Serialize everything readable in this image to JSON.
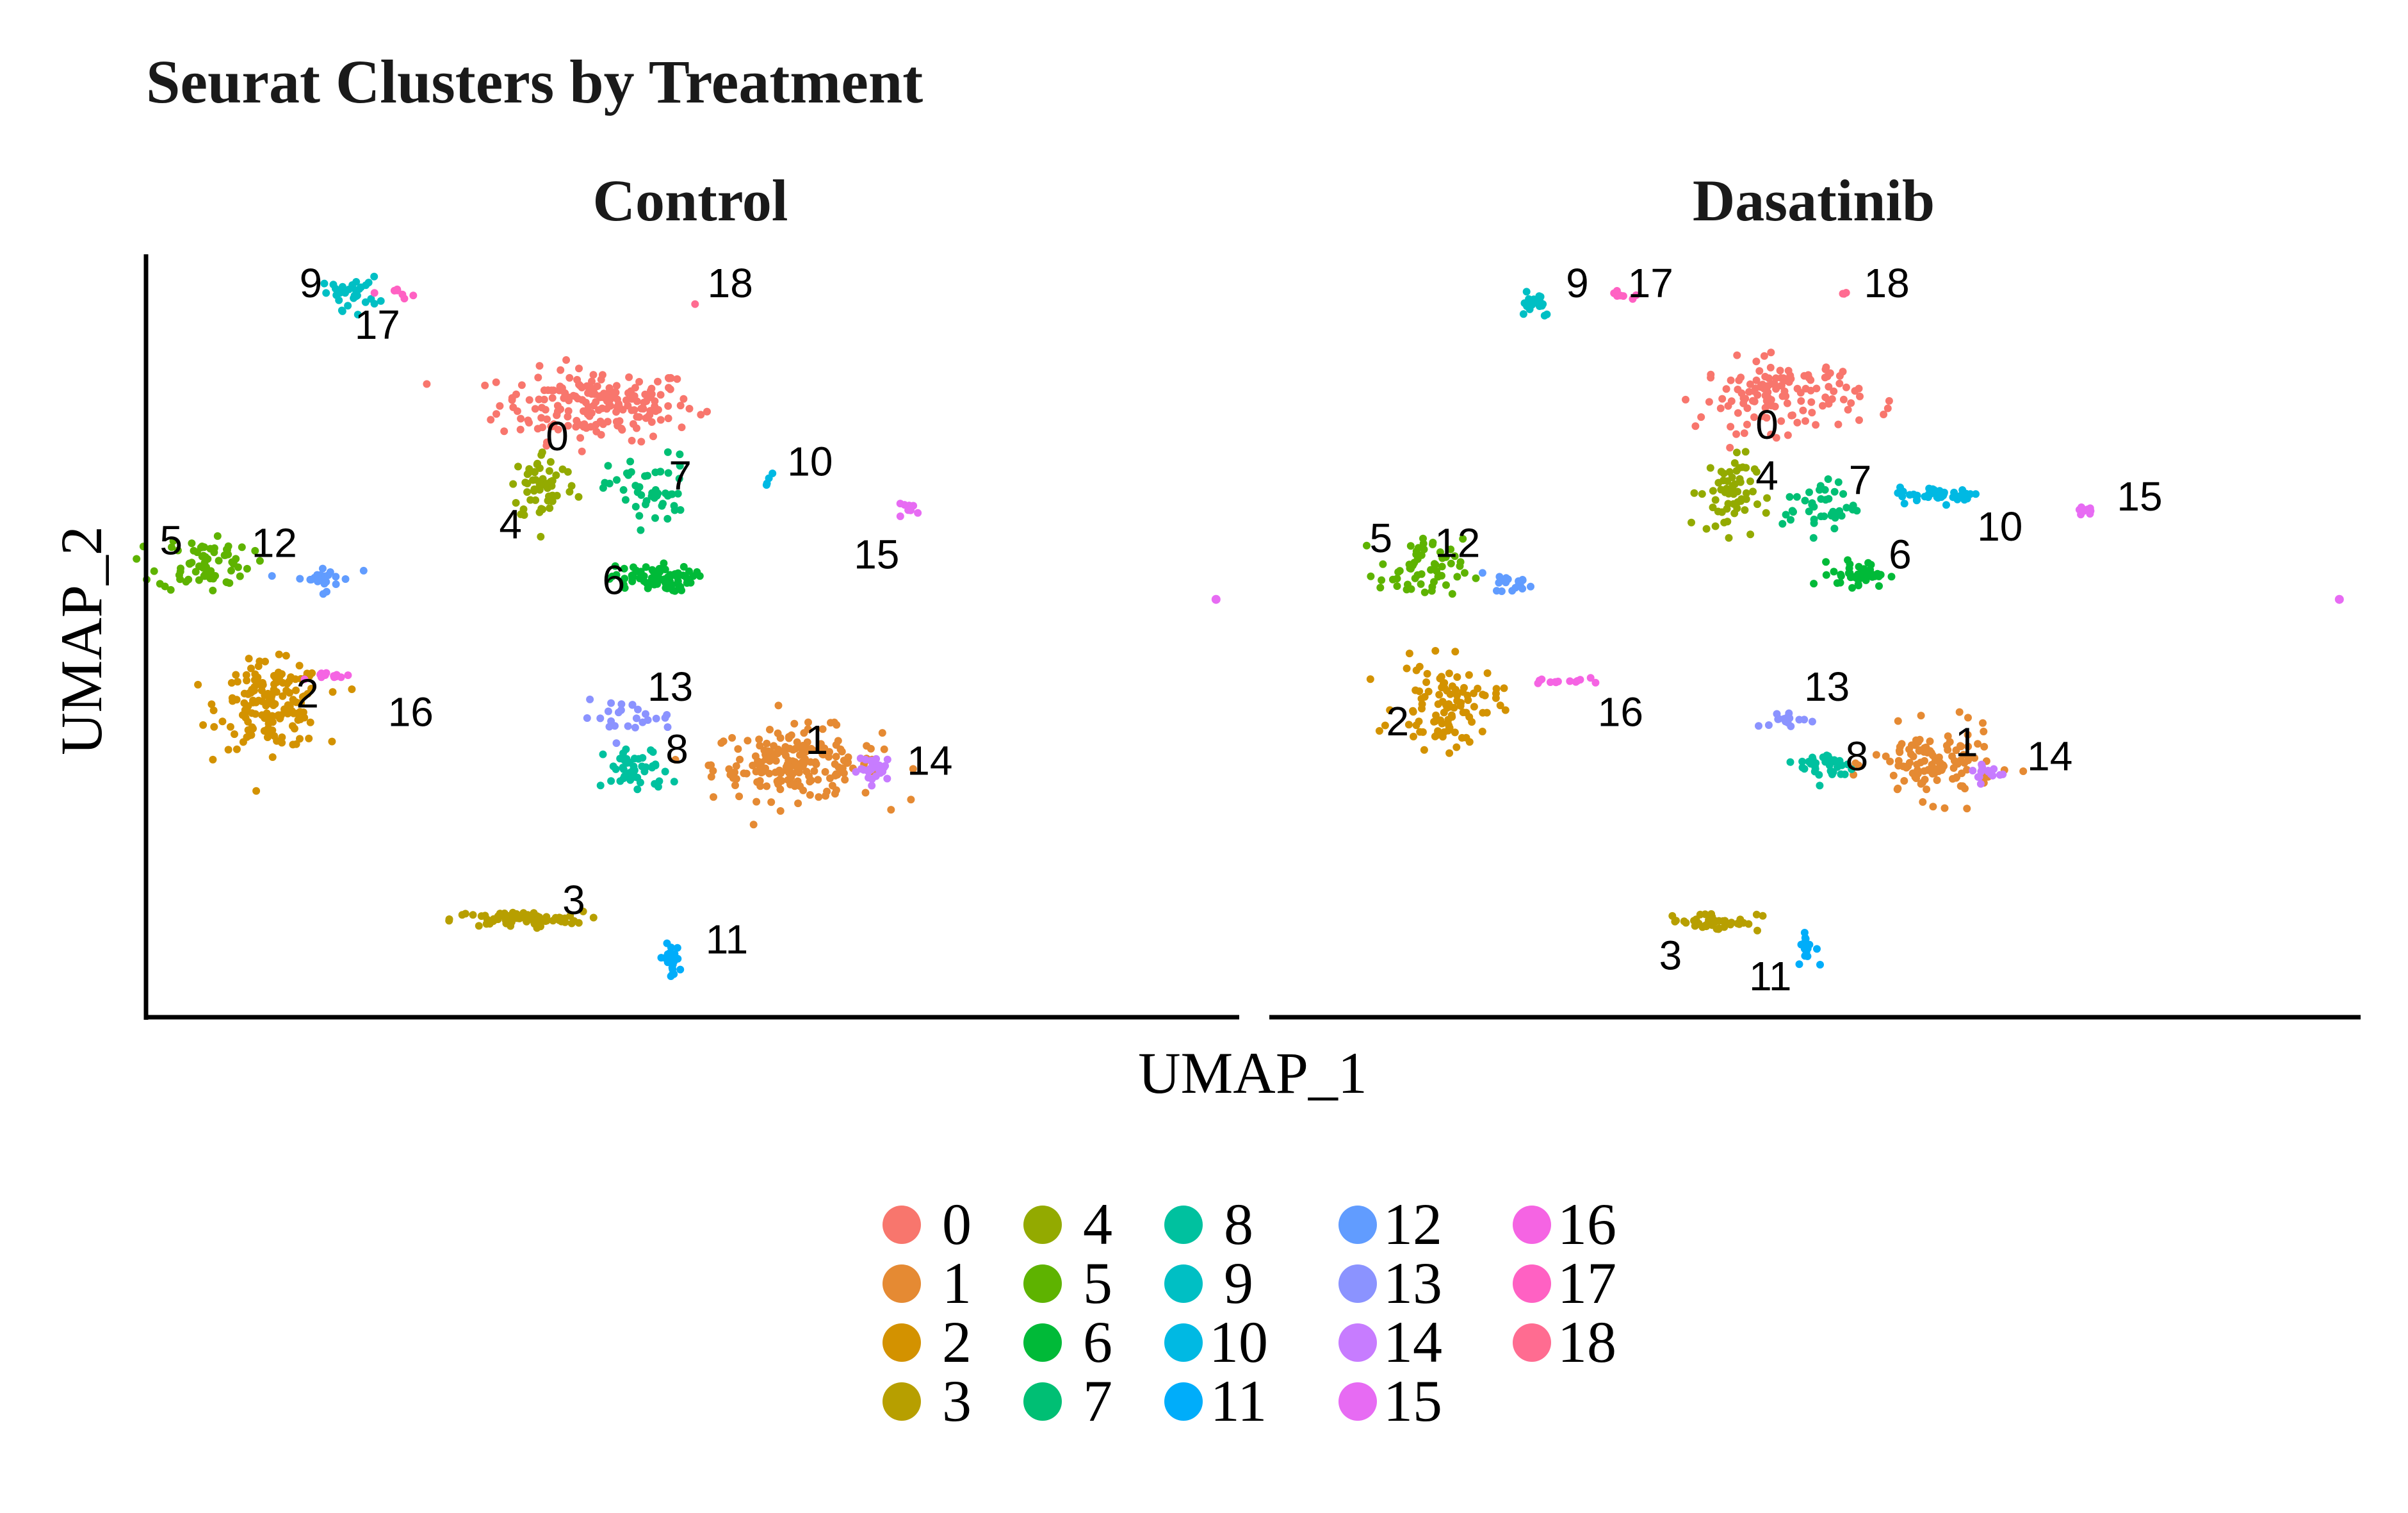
{
  "chart_data": {
    "type": "scatter",
    "title": "Seurat Clusters by Treatment",
    "xlabel": "UMAP_1",
    "ylabel": "UMAP_2",
    "axis_ticks": false,
    "grid": false,
    "legend_position": "bottom",
    "facets": [
      "Control",
      "Dasatinib"
    ],
    "clusters": [
      {
        "name": "0",
        "color": "#F8766D"
      },
      {
        "name": "1",
        "color": "#E7851E"
      },
      {
        "name": "2",
        "color": "#D09400"
      },
      {
        "name": "3",
        "color": "#B2A100"
      },
      {
        "name": "4",
        "color": "#89AC00"
      },
      {
        "name": "5",
        "color": "#45B500"
      },
      {
        "name": "6",
        "color": "#00BC51"
      },
      {
        "name": "7",
        "color": "#00C087"
      },
      {
        "name": "8",
        "color": "#00C0B2"
      },
      {
        "name": "9",
        "color": "#00BCD6"
      },
      {
        "name": "10",
        "color": "#00B3F2"
      },
      {
        "name": "11",
        "color": "#29A3FF"
      },
      {
        "name": "12",
        "color": "#9C8DFF"
      },
      {
        "name": "13",
        "color": "#D277FF"
      },
      {
        "name": "14",
        "color": "#F166E8"
      },
      {
        "name": "15",
        "color": "#FF61C7"
      },
      {
        "name": "16",
        "color": "#FF6C91"
      },
      {
        "name": "17",
        "color": "#00A9FF"
      },
      {
        "name": "18",
        "color": "#7CAE00"
      }
    ],
    "panel_colors": {
      "0": "#F8766D",
      "1": "#E58A33",
      "2": "#D39200",
      "3": "#B79F00",
      "4": "#93AA00",
      "5": "#5EB300",
      "6": "#00BA38",
      "7": "#00BF74",
      "8": "#00C19F",
      "9": "#00BFC4",
      "10": "#00B9E3",
      "11": "#00ADFA",
      "12": "#619CFF",
      "13": "#8B93FF",
      "14": "#C77CFF",
      "15": "#E76BF3",
      "16": "#F564E3",
      "17": "#FF61C3",
      "18": "#FF6C91"
    },
    "panels": [
      {
        "facet": "Control",
        "clusters": [
          {
            "name": "0",
            "cx": 0.0,
            "cy": 4.2,
            "sx": 1.05,
            "sy": 0.55,
            "n": 190,
            "label_at": [
              -0.6,
              3.45
            ]
          },
          {
            "name": "1",
            "cx": 3.0,
            "cy": -3.55,
            "sx": 0.9,
            "sy": 0.55,
            "n": 190,
            "label_at": [
              3.3,
              -3.1
            ]
          },
          {
            "name": "2",
            "cx": -4.9,
            "cy": -2.3,
            "sx": 0.55,
            "sy": 0.65,
            "n": 160,
            "label_at": [
              -4.35,
              -2.1
            ]
          },
          {
            "name": "3",
            "cx": -1.2,
            "cy": -6.9,
            "sx": 0.7,
            "sy": 0.12,
            "n": 80,
            "label_at": [
              -0.35,
              -6.55
            ]
          },
          {
            "name": "4",
            "cx": -0.8,
            "cy": 2.45,
            "sx": 0.35,
            "sy": 0.55,
            "n": 60,
            "label_at": [
              -1.3,
              1.55
            ]
          },
          {
            "name": "5",
            "cx": -5.9,
            "cy": 0.8,
            "sx": 0.5,
            "sy": 0.45,
            "n": 70,
            "label_at": [
              -6.4,
              1.2
            ]
          },
          {
            "name": "6",
            "cx": 0.8,
            "cy": 0.45,
            "sx": 0.45,
            "sy": 0.2,
            "n": 70,
            "label_at": [
              0.25,
              0.35
            ]
          },
          {
            "name": "7",
            "cx": 0.8,
            "cy": 2.35,
            "sx": 0.45,
            "sy": 0.55,
            "n": 50,
            "label_at": [
              1.25,
              2.6
            ]
          },
          {
            "name": "8",
            "cx": 0.6,
            "cy": -3.7,
            "sx": 0.35,
            "sy": 0.35,
            "n": 50,
            "label_at": [
              1.2,
              -3.3
            ]
          },
          {
            "name": "9",
            "cx": -3.7,
            "cy": 6.6,
            "sx": 0.3,
            "sy": 0.25,
            "n": 30,
            "label_at": [
              -4.3,
              6.75
            ]
          },
          {
            "name": "10",
            "cx": 2.6,
            "cy": 2.6,
            "sx": 0.05,
            "sy": 0.1,
            "n": 4,
            "label_at": [
              3.2,
              2.9
            ]
          },
          {
            "name": "11",
            "cx": 1.1,
            "cy": -7.8,
            "sx": 0.1,
            "sy": 0.25,
            "n": 20,
            "label_at": [
              1.95,
              -7.4
            ]
          },
          {
            "name": "12",
            "cx": -4.15,
            "cy": 0.45,
            "sx": 0.35,
            "sy": 0.2,
            "n": 25,
            "label_at": [
              -4.85,
              1.15
            ]
          },
          {
            "name": "13",
            "cx": 0.45,
            "cy": -2.55,
            "sx": 0.5,
            "sy": 0.25,
            "n": 25,
            "label_at": [
              1.1,
              -1.95
            ]
          },
          {
            "name": "14",
            "cx": 4.2,
            "cy": -3.65,
            "sx": 0.2,
            "sy": 0.2,
            "n": 30,
            "label_at": [
              5.0,
              -3.55
            ]
          },
          {
            "name": "15",
            "cx": 4.7,
            "cy": 1.95,
            "sx": 0.15,
            "sy": 0.08,
            "n": 8,
            "label_at": [
              4.2,
              0.9
            ]
          },
          {
            "name": "16",
            "cx": -3.9,
            "cy": -1.65,
            "sx": 0.25,
            "sy": 0.06,
            "n": 12,
            "label_at": [
              -2.8,
              -2.5
            ]
          },
          {
            "name": "17",
            "cx": -2.95,
            "cy": 6.6,
            "sx": 0.15,
            "sy": 0.08,
            "n": 7,
            "label_at": [
              -3.3,
              5.85
            ]
          },
          {
            "name": "18",
            "cx": 1.5,
            "cy": 6.35,
            "sx": 0.02,
            "sy": 0.02,
            "n": 1,
            "label_at": [
              2.0,
              6.75
            ]
          }
        ],
        "outliers": [
          {
            "name": "15",
            "x": 9.3,
            "y": 0.0
          }
        ]
      },
      {
        "facet": "Dasatinib",
        "clusters": [
          {
            "name": "0",
            "cx": 0.9,
            "cy": 4.4,
            "sx": 0.85,
            "sy": 0.55,
            "n": 130,
            "label_at": [
              0.7,
              3.7
            ]
          },
          {
            "name": "1",
            "cx": 3.2,
            "cy": -3.55,
            "sx": 0.65,
            "sy": 0.55,
            "n": 120,
            "label_at": [
              3.7,
              -3.15
            ]
          },
          {
            "name": "2",
            "cx": -4.1,
            "cy": -2.3,
            "sx": 0.55,
            "sy": 0.65,
            "n": 100,
            "label_at": [
              -4.85,
              -2.7
            ]
          },
          {
            "name": "3",
            "cx": -0.1,
            "cy": -6.95,
            "sx": 0.5,
            "sy": 0.15,
            "n": 40,
            "label_at": [
              -0.75,
              -7.75
            ]
          },
          {
            "name": "4",
            "cx": 0.1,
            "cy": 2.3,
            "sx": 0.3,
            "sy": 0.6,
            "n": 60,
            "label_at": [
              0.7,
              2.6
            ]
          },
          {
            "name": "5",
            "cx": -4.5,
            "cy": 0.6,
            "sx": 0.45,
            "sy": 0.5,
            "n": 60,
            "label_at": [
              -5.1,
              1.25
            ]
          },
          {
            "name": "6",
            "cx": 2.1,
            "cy": 0.55,
            "sx": 0.3,
            "sy": 0.2,
            "n": 45,
            "label_at": [
              2.7,
              0.9
            ]
          },
          {
            "name": "7",
            "cx": 1.5,
            "cy": 2.0,
            "sx": 0.4,
            "sy": 0.4,
            "n": 40,
            "label_at": [
              2.1,
              2.5
            ]
          },
          {
            "name": "8",
            "cx": 1.6,
            "cy": -3.6,
            "sx": 0.3,
            "sy": 0.25,
            "n": 35,
            "label_at": [
              2.05,
              -3.45
            ]
          },
          {
            "name": "9",
            "cx": -2.8,
            "cy": 6.45,
            "sx": 0.2,
            "sy": 0.25,
            "n": 20,
            "label_at": [
              -2.15,
              6.75
            ]
          },
          {
            "name": "10",
            "cx": 3.3,
            "cy": 2.25,
            "sx": 0.45,
            "sy": 0.12,
            "n": 45,
            "label_at": [
              4.2,
              1.5
            ]
          },
          {
            "name": "11",
            "cx": 1.3,
            "cy": -7.5,
            "sx": 0.1,
            "sy": 0.25,
            "n": 15,
            "label_at": [
              0.75,
              -8.2
            ]
          },
          {
            "name": "12",
            "cx": -3.1,
            "cy": 0.35,
            "sx": 0.2,
            "sy": 0.15,
            "n": 20,
            "label_at": [
              -3.95,
              1.15
            ]
          },
          {
            "name": "13",
            "cx": 1.0,
            "cy": -2.6,
            "sx": 0.35,
            "sy": 0.12,
            "n": 15,
            "label_at": [
              1.6,
              -1.95
            ]
          },
          {
            "name": "14",
            "cx": 4.0,
            "cy": -3.75,
            "sx": 0.2,
            "sy": 0.2,
            "n": 15,
            "label_at": [
              4.95,
              -3.45
            ]
          },
          {
            "name": "15",
            "cx": 5.5,
            "cy": 1.95,
            "sx": 0.12,
            "sy": 0.08,
            "n": 12,
            "label_at": [
              6.3,
              2.15
            ]
          },
          {
            "name": "16",
            "cx": -2.45,
            "cy": -1.75,
            "sx": 0.3,
            "sy": 0.08,
            "n": 14,
            "label_at": [
              -1.5,
              -2.5
            ]
          },
          {
            "name": "17",
            "cx": -1.5,
            "cy": 6.55,
            "sx": 0.15,
            "sy": 0.06,
            "n": 8,
            "label_at": [
              -1.05,
              6.75
            ]
          },
          {
            "name": "18",
            "cx": 1.85,
            "cy": 6.6,
            "sx": 0.05,
            "sy": 0.04,
            "n": 3,
            "label_at": [
              2.5,
              6.75
            ]
          }
        ],
        "outliers": [
          {
            "name": "15",
            "x": 9.3,
            "y": 0.0
          }
        ]
      }
    ],
    "xlim": [
      -6.7,
      9.6
    ],
    "ylim": [
      -8.9,
      7.4
    ]
  }
}
